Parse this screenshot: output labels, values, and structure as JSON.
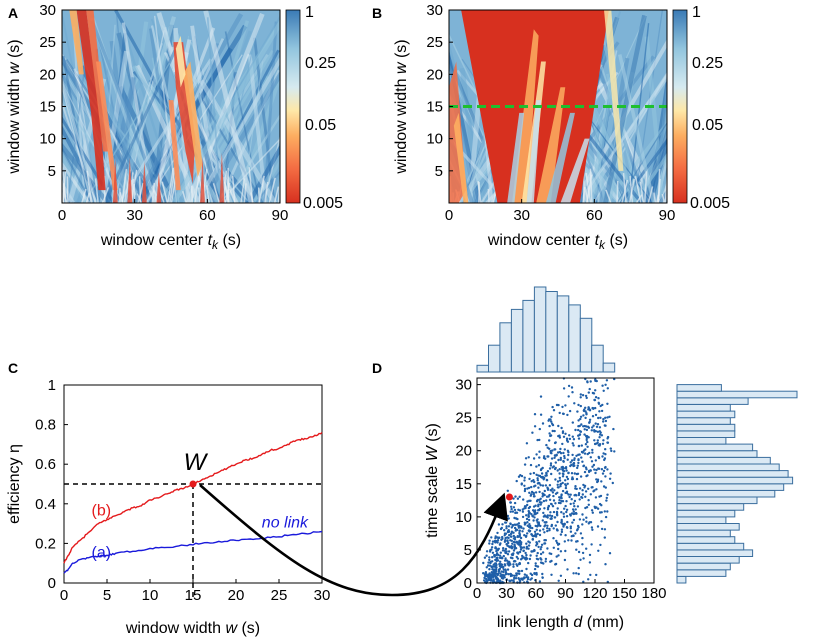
{
  "panels": {
    "A": "A",
    "B": "B",
    "C": "C",
    "D": "D"
  },
  "colorbar": {
    "ticks": [
      "1",
      "0.25",
      "0.05",
      "0.005"
    ]
  },
  "chart_data": [
    {
      "panel": "A",
      "type": "heatmap",
      "xlabel": "window center",
      "xsym": "t",
      "xsub": "k",
      "xunit": "(s)",
      "ylabel": "window width",
      "ysym": "w",
      "yunit": "(s)",
      "xlim": [
        0,
        90
      ],
      "ylim": [
        0,
        30
      ],
      "xticks": [
        "0",
        "30",
        "60",
        "90"
      ],
      "yticks": [
        "5",
        "10",
        "15",
        "20",
        "25",
        "30"
      ],
      "colorbar_ticks": [
        "1",
        "0.25",
        "0.05",
        "0.005"
      ],
      "low_value_regions": [
        {
          "center_s": 12,
          "width_span_s": [
            0,
            30
          ]
        },
        {
          "center_s": 52,
          "width_span_s": [
            0,
            25
          ]
        }
      ]
    },
    {
      "panel": "B",
      "type": "heatmap",
      "xlabel": "window center",
      "xsym": "t",
      "xsub": "k",
      "xunit": "(s)",
      "ylabel": "window width",
      "ysym": "w",
      "yunit": "(s)",
      "xlim": [
        0,
        90
      ],
      "ylim": [
        0,
        30
      ],
      "xticks": [
        "0",
        "30",
        "60",
        "90"
      ],
      "yticks": [
        "5",
        "10",
        "15",
        "20",
        "25",
        "30"
      ],
      "colorbar_ticks": [
        "1",
        "0.25",
        "0.05",
        "0.005"
      ],
      "reference_line_w": 15,
      "low_value_region": "large triangle, x 4–66 s at top, apex near 19 s and 53 s at w=0"
    },
    {
      "panel": "C",
      "type": "line",
      "xlabel": "window width",
      "xsym": "w",
      "xunit": "(s)",
      "ylabel": "efficiency η",
      "xlim": [
        0,
        30
      ],
      "ylim": [
        0,
        1
      ],
      "xticks": [
        "0",
        "5",
        "10",
        "15",
        "20",
        "25",
        "30"
      ],
      "yticks": [
        "0",
        "0.2",
        "0.4",
        "0.6",
        "0.8",
        "1"
      ],
      "series": [
        {
          "name": "(b)",
          "color": "#e41a1c",
          "x": [
            0,
            0.5,
            1,
            2,
            3,
            4,
            5,
            6,
            7,
            8,
            9,
            10,
            11,
            12,
            13,
            14,
            15,
            16,
            17,
            18,
            19,
            20,
            21,
            22,
            23,
            24,
            25,
            26,
            27,
            28,
            29,
            30
          ],
          "y": [
            0.1,
            0.14,
            0.18,
            0.22,
            0.26,
            0.3,
            0.32,
            0.34,
            0.36,
            0.38,
            0.39,
            0.42,
            0.43,
            0.45,
            0.47,
            0.48,
            0.5,
            0.52,
            0.54,
            0.56,
            0.58,
            0.6,
            0.62,
            0.63,
            0.65,
            0.67,
            0.68,
            0.7,
            0.72,
            0.73,
            0.74,
            0.76
          ]
        },
        {
          "name": "(a)",
          "label": "no link",
          "color": "#1a1adb",
          "x": [
            0,
            0.5,
            1,
            2,
            3,
            4,
            5,
            6,
            8,
            10,
            12,
            14,
            16,
            18,
            20,
            22,
            24,
            26,
            28,
            30
          ],
          "y": [
            0.05,
            0.07,
            0.1,
            0.12,
            0.13,
            0.135,
            0.14,
            0.15,
            0.16,
            0.175,
            0.18,
            0.19,
            0.2,
            0.21,
            0.215,
            0.22,
            0.23,
            0.24,
            0.25,
            0.26
          ]
        }
      ],
      "marker": {
        "label": "W",
        "x": 15,
        "y": 0.5
      }
    },
    {
      "panel": "D",
      "type": "scatter",
      "xlabel": "link length",
      "xsym": "d",
      "xunit": "(mm)",
      "ylabel": "time scale",
      "ysym": "W",
      "yunit": "(s)",
      "xlim": [
        0,
        180
      ],
      "ylim": [
        0,
        31
      ],
      "xticks": [
        "0",
        "30",
        "60",
        "90",
        "120",
        "150",
        "180"
      ],
      "yticks": [
        "0",
        "5",
        "10",
        "15",
        "20",
        "25",
        "30"
      ],
      "highlight": {
        "x": 33,
        "y": 13
      },
      "hist_top_counts": [
        3,
        12,
        22,
        28,
        32,
        38,
        36,
        34,
        30,
        24,
        12,
        4
      ],
      "hist_right_counts": [
        2,
        11,
        12,
        14,
        17,
        15,
        13,
        12,
        14,
        11,
        13,
        15,
        18,
        22,
        24,
        26,
        25,
        23,
        21,
        18,
        17,
        11,
        13,
        13,
        12,
        13,
        12,
        16,
        27,
        10
      ]
    }
  ]
}
